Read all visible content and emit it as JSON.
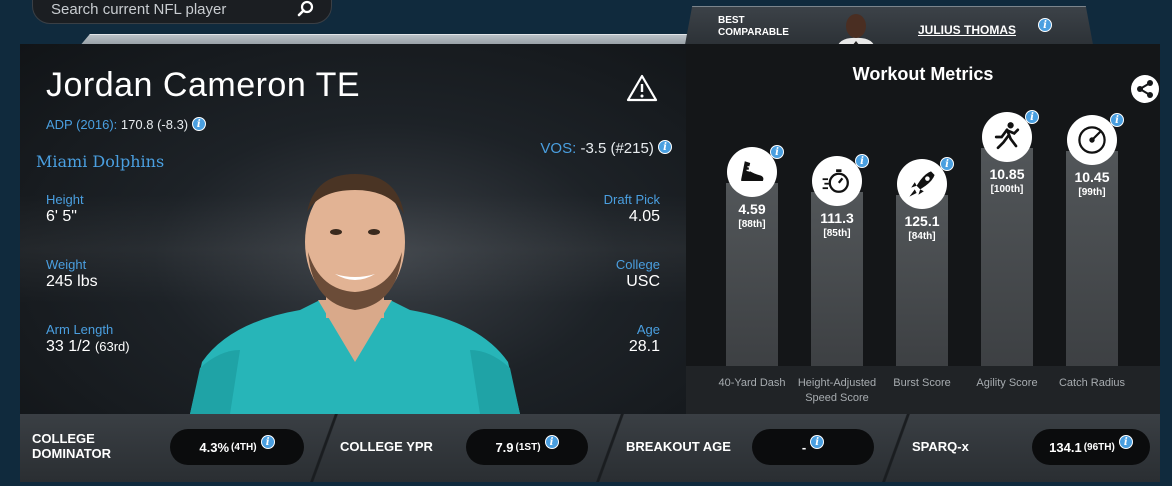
{
  "search": {
    "placeholder": "Search current NFL player"
  },
  "comparable": {
    "label_line1": "BEST",
    "label_line2": "COMPARABLE",
    "name": "JULIUS THOMAS"
  },
  "player": {
    "name": "Jordan Cameron TE",
    "adp_label": "ADP (2016):",
    "adp_value": "170.8 (-8.3)",
    "vos_label": "VOS:",
    "vos_value": "-3.5 (#215)",
    "team": "Miami Dolphins",
    "height_label": "Height",
    "height": "6' 5\"",
    "weight_label": "Weight",
    "weight": "245 lbs",
    "arm_label": "Arm Length",
    "arm": "33 1/2",
    "arm_rank": "(63rd)",
    "draft_label": "Draft Pick",
    "draft": "4.05",
    "college_label": "College",
    "college": "USC",
    "age_label": "Age",
    "age": "28.1"
  },
  "workout": {
    "title": "Workout Metrics",
    "metrics": [
      {
        "value": "4.59",
        "pct": "[88th]",
        "label1": "40-Yard Dash",
        "label2": "",
        "icon": "shoe-icon",
        "level": 88
      },
      {
        "value": "111.3",
        "pct": "[85th]",
        "label1": "Height-Adjusted",
        "label2": "Speed Score",
        "icon": "stopwatch-icon",
        "level": 85
      },
      {
        "value": "125.1",
        "pct": "[84th]",
        "label1": "Burst Score",
        "label2": "",
        "icon": "rocket-icon",
        "level": 84
      },
      {
        "value": "10.85",
        "pct": "[100th]",
        "label1": "Agility Score",
        "label2": "",
        "icon": "runner-icon",
        "level": 100
      },
      {
        "value": "10.45",
        "pct": "[99th]",
        "label1": "Catch Radius",
        "label2": "",
        "icon": "target-icon",
        "level": 99
      }
    ]
  },
  "bottom": [
    {
      "label1": "COLLEGE",
      "label2": "DOMINATOR",
      "value": "4.3%",
      "rank": "(4TH)"
    },
    {
      "label1": "COLLEGE YPR",
      "label2": "",
      "value": "7.9",
      "rank": "(1ST)"
    },
    {
      "label1": "BREAKOUT AGE",
      "label2": "",
      "value": "-",
      "rank": ""
    },
    {
      "label1": "SPARQ-x",
      "label2": "",
      "value": "134.1",
      "rank": "(96TH)"
    }
  ],
  "info_glyph": "i"
}
